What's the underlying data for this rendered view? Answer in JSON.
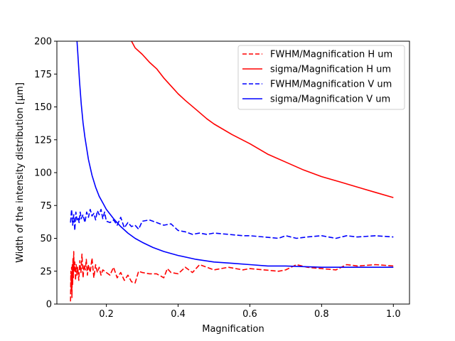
{
  "chart_data": {
    "type": "line",
    "title": "",
    "xlabel": "Magnification",
    "ylabel": "Width of the intensity distribution [μm]",
    "xlim": [
      0.062,
      1.045
    ],
    "ylim": [
      0,
      200
    ],
    "xticks": [
      0.2,
      0.4,
      0.6,
      0.8,
      1.0
    ],
    "xtick_labels": [
      "0.2",
      "0.4",
      "0.6",
      "0.8",
      "1.0"
    ],
    "yticks": [
      0,
      25,
      50,
      75,
      100,
      125,
      150,
      175,
      200
    ],
    "ytick_labels": [
      "0",
      "25",
      "50",
      "75",
      "100",
      "125",
      "150",
      "175",
      "200"
    ],
    "grid": false,
    "legend_position": "top-right",
    "series": [
      {
        "name": "FWHM/Magnification H um",
        "color": "#ff0000",
        "dash": "dashed",
        "x": [
          0.1,
          0.101,
          0.102,
          0.103,
          0.104,
          0.105,
          0.106,
          0.107,
          0.108,
          0.109,
          0.11,
          0.112,
          0.114,
          0.116,
          0.118,
          0.12,
          0.123,
          0.126,
          0.129,
          0.132,
          0.135,
          0.138,
          0.141,
          0.144,
          0.147,
          0.15,
          0.155,
          0.16,
          0.165,
          0.17,
          0.175,
          0.18,
          0.185,
          0.19,
          0.2,
          0.21,
          0.22,
          0.23,
          0.24,
          0.25,
          0.26,
          0.27,
          0.28,
          0.29,
          0.3,
          0.32,
          0.34,
          0.36,
          0.37,
          0.38,
          0.4,
          0.42,
          0.44,
          0.46,
          0.47,
          0.5,
          0.54,
          0.58,
          0.6,
          0.64,
          0.68,
          0.7,
          0.73,
          0.76,
          0.8,
          0.84,
          0.87,
          0.9,
          0.95,
          1.0
        ],
        "y": [
          2,
          25,
          10,
          28,
          5,
          30,
          15,
          35,
          20,
          40,
          25,
          32,
          18,
          30,
          22,
          28,
          18,
          33,
          24,
          38,
          20,
          30,
          26,
          34,
          22,
          30,
          24,
          35,
          20,
          30,
          24,
          28,
          22,
          26,
          24,
          22,
          28,
          20,
          24,
          18,
          22,
          17,
          16,
          25,
          24,
          23,
          23,
          20,
          27,
          24,
          23,
          28,
          24,
          30,
          29,
          26,
          28,
          26,
          27,
          26,
          25,
          26,
          30,
          28,
          27,
          26,
          30,
          29,
          30,
          29
        ]
      },
      {
        "name": "sigma/Magnification H um",
        "color": "#ff0000",
        "dash": "solid",
        "x": [
          0.27,
          0.28,
          0.3,
          0.32,
          0.34,
          0.36,
          0.38,
          0.4,
          0.42,
          0.45,
          0.48,
          0.5,
          0.55,
          0.6,
          0.65,
          0.7,
          0.75,
          0.8,
          0.85,
          0.9,
          0.95,
          1.0
        ],
        "y": [
          200,
          195,
          190,
          184,
          179,
          172,
          166,
          160,
          155,
          148,
          141,
          137,
          129,
          122,
          114,
          108,
          102,
          97,
          93,
          89,
          85,
          81
        ]
      },
      {
        "name": "FWHM/Magnification V um",
        "color": "#0000ff",
        "dash": "dashed",
        "x": [
          0.1,
          0.103,
          0.106,
          0.109,
          0.112,
          0.115,
          0.118,
          0.121,
          0.124,
          0.127,
          0.13,
          0.135,
          0.14,
          0.145,
          0.15,
          0.155,
          0.16,
          0.165,
          0.17,
          0.175,
          0.18,
          0.185,
          0.19,
          0.195,
          0.2,
          0.21,
          0.22,
          0.23,
          0.24,
          0.25,
          0.26,
          0.27,
          0.28,
          0.29,
          0.3,
          0.32,
          0.34,
          0.36,
          0.38,
          0.4,
          0.42,
          0.44,
          0.46,
          0.48,
          0.5,
          0.54,
          0.58,
          0.6,
          0.64,
          0.68,
          0.7,
          0.73,
          0.76,
          0.8,
          0.84,
          0.87,
          0.9,
          0.95,
          1.0
        ],
        "y": [
          62,
          72,
          60,
          68,
          56,
          70,
          64,
          66,
          62,
          70,
          65,
          68,
          62,
          70,
          66,
          72,
          67,
          69,
          64,
          71,
          68,
          72,
          65,
          70,
          63,
          62,
          64,
          60,
          66,
          58,
          62,
          59,
          60,
          57,
          63,
          64,
          62,
          60,
          61,
          56,
          55,
          53,
          54,
          53,
          54,
          53,
          52,
          52,
          51,
          50,
          52,
          50,
          51,
          52,
          50,
          52,
          51,
          52,
          51
        ]
      },
      {
        "name": "sigma/Magnification V um",
        "color": "#0000ff",
        "dash": "solid",
        "x": [
          0.118,
          0.12,
          0.125,
          0.13,
          0.135,
          0.14,
          0.15,
          0.16,
          0.17,
          0.18,
          0.19,
          0.2,
          0.22,
          0.24,
          0.26,
          0.28,
          0.3,
          0.33,
          0.36,
          0.4,
          0.45,
          0.5,
          0.55,
          0.6,
          0.65,
          0.7,
          0.75,
          0.8,
          0.85,
          0.9,
          0.95,
          1.0
        ],
        "y": [
          200,
          192,
          170,
          152,
          138,
          127,
          110,
          98,
          89,
          82,
          77,
          72,
          65,
          59,
          54,
          50,
          47,
          43,
          40,
          37,
          34,
          32,
          31,
          30,
          29,
          29,
          28.5,
          28,
          28,
          28,
          28,
          28
        ]
      }
    ]
  }
}
